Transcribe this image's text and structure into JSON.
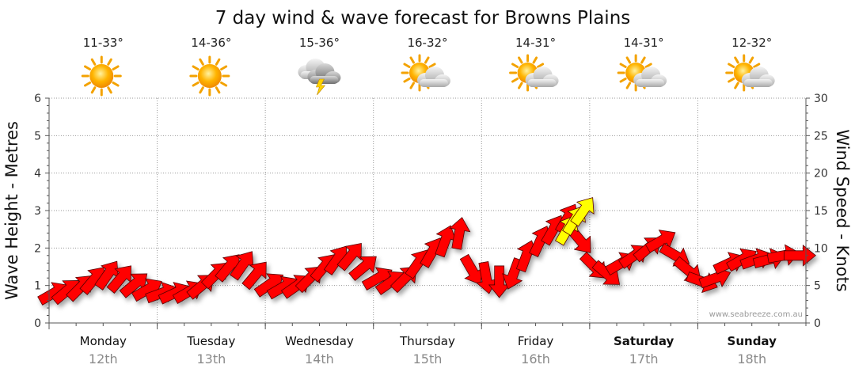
{
  "chart_data": {
    "type": "scatter",
    "title": "7 day wind & wave forecast for Browns Plains",
    "ylabel": "Wave Height - Metres",
    "y2label": "Wind Speed - Knots",
    "ylim": [
      0,
      6
    ],
    "y2lim": [
      0,
      30
    ],
    "y_ticks": [
      "0",
      "1",
      "2",
      "3",
      "4",
      "5",
      "6"
    ],
    "y2_ticks": [
      "0",
      "5",
      "10",
      "15",
      "20",
      "25",
      "30"
    ],
    "grid": true,
    "watermark": "www.seabreeze.com.au",
    "arrow_color": "#ff0000",
    "highlight_color": "#ffff00",
    "days": [
      {
        "name": "Monday",
        "date": "12th",
        "temp": "11-33°",
        "icon": "sunny-icon",
        "bold": false
      },
      {
        "name": "Tuesday",
        "date": "13th",
        "temp": "14-36°",
        "icon": "sunny-icon",
        "bold": false
      },
      {
        "name": "Wednesday",
        "date": "14th",
        "temp": "15-36°",
        "icon": "thunderstorm-icon",
        "bold": false
      },
      {
        "name": "Thursday",
        "date": "15th",
        "temp": "16-32°",
        "icon": "partly-cloudy-icon",
        "bold": false
      },
      {
        "name": "Friday",
        "date": "16th",
        "temp": "14-31°",
        "icon": "partly-cloudy-icon",
        "bold": false
      },
      {
        "name": "Saturday",
        "date": "17th",
        "temp": "14-31°",
        "icon": "partly-cloudy-icon",
        "bold": true
      },
      {
        "name": "Sunday",
        "date": "18th",
        "temp": "12-32°",
        "icon": "partly-cloudy-icon",
        "bold": true
      }
    ],
    "wind": [
      {
        "t": 0.0,
        "kn": 4.0,
        "dir": 240
      },
      {
        "t": 0.12,
        "kn": 4.3,
        "dir": 230
      },
      {
        "t": 0.25,
        "kn": 4.8,
        "dir": 225
      },
      {
        "t": 0.37,
        "kn": 5.8,
        "dir": 220
      },
      {
        "t": 0.5,
        "kn": 6.5,
        "dir": 215
      },
      {
        "t": 0.62,
        "kn": 6.0,
        "dir": 220
      },
      {
        "t": 0.75,
        "kn": 5.2,
        "dir": 230
      },
      {
        "t": 0.87,
        "kn": 4.5,
        "dir": 240
      },
      {
        "t": 1.0,
        "kn": 4.0,
        "dir": 250
      },
      {
        "t": 1.12,
        "kn": 4.0,
        "dir": 245
      },
      {
        "t": 1.25,
        "kn": 4.2,
        "dir": 240
      },
      {
        "t": 1.37,
        "kn": 5.0,
        "dir": 230
      },
      {
        "t": 1.5,
        "kn": 6.5,
        "dir": 225
      },
      {
        "t": 1.62,
        "kn": 7.5,
        "dir": 220
      },
      {
        "t": 1.75,
        "kn": 7.8,
        "dir": 215
      },
      {
        "t": 1.87,
        "kn": 6.5,
        "dir": 220
      },
      {
        "t": 2.0,
        "kn": 5.2,
        "dir": 235
      },
      {
        "t": 2.12,
        "kn": 4.8,
        "dir": 240
      },
      {
        "t": 2.25,
        "kn": 5.0,
        "dir": 235
      },
      {
        "t": 2.37,
        "kn": 6.0,
        "dir": 225
      },
      {
        "t": 2.5,
        "kn": 7.5,
        "dir": 220
      },
      {
        "t": 2.62,
        "kn": 8.5,
        "dir": 215
      },
      {
        "t": 2.75,
        "kn": 9.0,
        "dir": 220
      },
      {
        "t": 2.87,
        "kn": 7.5,
        "dir": 230
      },
      {
        "t": 3.0,
        "kn": 6.0,
        "dir": 240
      },
      {
        "t": 3.12,
        "kn": 5.5,
        "dir": 235
      },
      {
        "t": 3.25,
        "kn": 6.0,
        "dir": 225
      },
      {
        "t": 3.37,
        "kn": 8.0,
        "dir": 215
      },
      {
        "t": 3.5,
        "kn": 9.5,
        "dir": 210
      },
      {
        "t": 3.62,
        "kn": 11.0,
        "dir": 200
      },
      {
        "t": 3.75,
        "kn": 12.0,
        "dir": 190
      },
      {
        "t": 3.87,
        "kn": 7.0,
        "dir": 330
      },
      {
        "t": 4.0,
        "kn": 6.0,
        "dir": 350
      },
      {
        "t": 4.12,
        "kn": 5.5,
        "dir": 0
      },
      {
        "t": 4.25,
        "kn": 6.5,
        "dir": 20
      },
      {
        "t": 4.37,
        "kn": 9.0,
        "dir": 200
      },
      {
        "t": 4.5,
        "kn": 11.0,
        "dir": 205
      },
      {
        "t": 4.62,
        "kn": 12.5,
        "dir": 210
      },
      {
        "t": 4.75,
        "kn": 14.0,
        "dir": 210
      },
      {
        "t": 4.87,
        "kn": 11.0,
        "dir": 320
      },
      {
        "t": 5.0,
        "kn": 7.5,
        "dir": 315
      },
      {
        "t": 5.12,
        "kn": 6.5,
        "dir": 310
      },
      {
        "t": 5.25,
        "kn": 8.0,
        "dir": 240
      },
      {
        "t": 5.37,
        "kn": 9.0,
        "dir": 235
      },
      {
        "t": 5.5,
        "kn": 10.0,
        "dir": 230
      },
      {
        "t": 5.62,
        "kn": 11.0,
        "dir": 240
      },
      {
        "t": 5.75,
        "kn": 9.0,
        "dir": 300
      },
      {
        "t": 5.87,
        "kn": 7.0,
        "dir": 310
      },
      {
        "t": 6.0,
        "kn": 5.5,
        "dir": 290
      },
      {
        "t": 6.12,
        "kn": 6.0,
        "dir": 250
      },
      {
        "t": 6.25,
        "kn": 8.0,
        "dir": 245
      },
      {
        "t": 6.37,
        "kn": 8.5,
        "dir": 240
      },
      {
        "t": 6.5,
        "kn": 8.5,
        "dir": 250
      },
      {
        "t": 6.62,
        "kn": 8.5,
        "dir": 255
      },
      {
        "t": 6.75,
        "kn": 9.0,
        "dir": 260
      },
      {
        "t": 6.9,
        "kn": 9.0,
        "dir": 270
      }
    ],
    "highlight_wind": [
      {
        "t": 4.75,
        "kn": 12.5,
        "dir": 210
      },
      {
        "t": 4.82,
        "kn": 13.8,
        "dir": 212
      },
      {
        "t": 4.9,
        "kn": 15.0,
        "dir": 215
      }
    ]
  }
}
